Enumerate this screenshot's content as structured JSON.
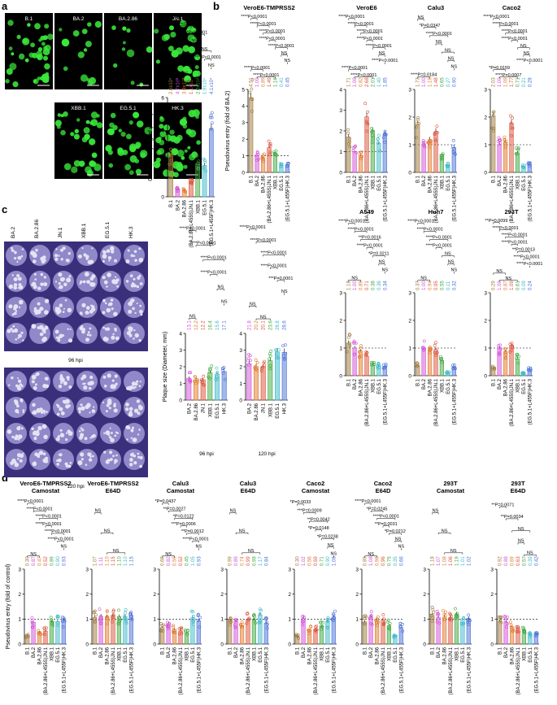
{
  "colors": [
    "#a07a3c",
    "#d14fd6",
    "#e07a2c",
    "#d95038",
    "#3fa83f",
    "#3cb8c9",
    "#4a70d6"
  ],
  "panel_a": {
    "letter": "a",
    "micrographs": [
      "B.1",
      "BA.2",
      "BA.2.86",
      "JN.1",
      "XBB.1",
      "EG.5.1",
      "HK.3"
    ],
    "chart_data": {
      "type": "bar",
      "ylabel": "GFP Intensity signal (x10⁴)",
      "ylim": [
        0,
        6
      ],
      "yticks": [
        0,
        2,
        4,
        6
      ],
      "categories": [
        "B.1",
        "BA.2",
        "BA.2.86",
        "(BA.2.86+L455S)JN.1",
        "XBB.1",
        "EG.5.1",
        "(EG.5.1+L455F)HK.3"
      ],
      "values": [
        2.6,
        0.47,
        0.38,
        1.1,
        2.0,
        1.9,
        4.1
      ],
      "value_labels": [
        "2.6x10⁴",
        "4.7x10³",
        "3.8x10³",
        "1.1x10⁴",
        "2.0x10⁴",
        "1.9x10⁴",
        "4.1x10⁴"
      ],
      "significance": [
        "****P<0.0001",
        "****P<0.0001",
        "****P<0.0001",
        "NS",
        "NS",
        "****P<0.0001",
        "NS",
        "*P=0.0325",
        "****P<0.0001"
      ]
    }
  },
  "panel_b": {
    "letter": "b",
    "ylabel": "Pseudovirus entry (fold of BA.2)",
    "categories": [
      "B.1",
      "BA.2",
      "BA.2.86",
      "(BA.2.86+L455S)JN.1",
      "XBB.1",
      "EG.5.1",
      "(EG.5.1+L455F)HK.3"
    ],
    "charts": [
      {
        "title": "VeroE6-TMPRSS2",
        "ylim": [
          0,
          5
        ],
        "yticks": [
          0,
          1,
          2,
          3,
          4,
          5
        ],
        "values": [
          4.51,
          1.0,
          0.89,
          1.49,
          1.16,
          0.41,
          0.45
        ],
        "value_labels": [
          "4.51",
          "1.00",
          "0.89",
          "1.49",
          "1.16",
          "0.41",
          "0.45"
        ],
        "significance": [
          "****P<0.0001",
          "****P<0.0001",
          "****P<0.0001",
          "****P<0.0001",
          "****P<0.0001",
          "NS",
          "NS",
          "****P<0.0001",
          "****P<0.0001"
        ]
      },
      {
        "title": "VeroE6",
        "ylim": [
          0,
          4
        ],
        "yticks": [
          0,
          1,
          2,
          3,
          4
        ],
        "values": [
          1.71,
          1.0,
          0.82,
          2.68,
          2.01,
          1.4,
          1.85
        ],
        "value_labels": [
          "1.71",
          "1.00",
          "0.82",
          "2.68",
          "2.01",
          "1.40",
          "1.85"
        ],
        "significance": [
          "****P<0.0001",
          "****P<0.0001",
          "****P<0.0001",
          "****P<0.0001",
          "****P<0.0001",
          "NS",
          "****P<0.0001",
          "****P<0.0001",
          "****P<0.0001"
        ]
      },
      {
        "title": "Calu3",
        "ylim": [
          0,
          3
        ],
        "yticks": [
          0,
          1,
          2,
          3
        ],
        "values": [
          1.73,
          1.0,
          1.19,
          1.48,
          0.65,
          0.27,
          0.9
        ],
        "value_labels": [
          "1.73",
          "1.00",
          "1.19",
          "1.48",
          "0.65",
          "0.27",
          "0.90"
        ],
        "significance": [
          "NS",
          "*P=0.0347",
          "****P<0.0001",
          "NS",
          "NS",
          "NS",
          "NS",
          "****P=0.0184"
        ]
      },
      {
        "title": "Caco2",
        "ylim": [
          0,
          3
        ],
        "yticks": [
          0,
          1,
          2,
          3
        ],
        "values": [
          2.03,
          1.0,
          1.09,
          1.77,
          0.71,
          0.21,
          0.28
        ],
        "value_labels": [
          "2.03",
          "1.00",
          "1.09",
          "1.77",
          "0.71",
          "0.21",
          "0.28"
        ],
        "significance": [
          "****P<0.0001",
          "****P<0.0001",
          "****P<0.0001",
          "****P<0.0001",
          "NS",
          "NS",
          "****P<0.0001",
          "*P=0.0159",
          "****P=0.0007"
        ]
      },
      {
        "title": "A549",
        "ylim": [
          0,
          3
        ],
        "yticks": [
          0,
          1,
          2,
          3
        ],
        "values": [
          1.18,
          1.0,
          0.89,
          0.71,
          0.38,
          0.36,
          0.34
        ],
        "value_labels": [
          "1.18",
          "1.00",
          "0.89",
          "0.71",
          "0.38",
          "0.36",
          "0.34"
        ],
        "significance": [
          "****P<0.0001",
          "****P<0.0001",
          "**P=0.0016",
          "****P<0.0001",
          "*P=0.0211",
          "NS",
          "NS",
          "NS"
        ]
      },
      {
        "title": "Huh7",
        "ylim": [
          0,
          3
        ],
        "yticks": [
          0,
          1,
          2,
          3
        ],
        "values": [
          0.37,
          1.0,
          0.94,
          0.95,
          0.55,
          0.11,
          0.32
        ],
        "value_labels": [
          "0.37",
          "1.00",
          "0.94",
          "0.95",
          "0.55",
          "0.11",
          "0.32"
        ],
        "significance": [
          "****P<0.0001",
          "****P<0.0001",
          "****P<0.0001",
          "****P<0.0001",
          "NS",
          "NS",
          "NS",
          "NS"
        ]
      },
      {
        "title": "293T",
        "ylim": [
          0,
          3
        ],
        "yticks": [
          0,
          1,
          2,
          3
        ],
        "values": [
          0.29,
          1.0,
          0.87,
          1.09,
          0.61,
          0.09,
          0.24
        ],
        "value_labels": [
          "0.29",
          "1.00",
          "0.87",
          "1.09",
          "0.61",
          "0.09",
          "0.24"
        ],
        "significance": [
          "**P=0.0099",
          "****P<0.0001",
          "****P<0.0001",
          "****P<0.0001",
          "**P=0.0013",
          "****P<0.0001",
          "****P<0.0001",
          "NS",
          "NS"
        ]
      }
    ]
  },
  "panel_c": {
    "letter": "c",
    "plate_labels": [
      "BA.2",
      "BA.2.86",
      "JN.1",
      "XBB.1",
      "EG.5.1",
      "HK.3"
    ],
    "time_labels": [
      "96 hpi",
      "120 hpi"
    ],
    "ylabel": "Plaque size (Diameter, mm)",
    "categories": [
      "BA.2",
      "BA.2.86",
      "JN.1",
      "XBB.1",
      "EG.5.1",
      "HK.3"
    ],
    "colors": [
      "#d14fd6",
      "#e07a2c",
      "#d95038",
      "#3fa83f",
      "#3cb8c9",
      "#4a70d6"
    ],
    "charts": [
      {
        "title": "96 hpi",
        "ylim": [
          0,
          4
        ],
        "yticks": [
          0,
          1,
          2,
          3,
          4
        ],
        "values": [
          1.31,
          1.22,
          1.22,
          1.64,
          1.56,
          1.71
        ],
        "value_labels": [
          "13.1",
          "12.2",
          "12.2",
          "16.4",
          "15.6",
          "17.1"
        ],
        "significance": [
          "****P<0.0001",
          "****P<0.0001",
          "****P<0.0001",
          "****P<0.0001",
          "NS",
          "NS",
          "NS"
        ]
      },
      {
        "title": "120 hpi",
        "ylim": [
          0,
          4
        ],
        "yticks": [
          0,
          1,
          2,
          3,
          4
        ],
        "values": [
          2.18,
          2.02,
          2.01,
          2.36,
          2.88,
          2.86
        ],
        "value_labels": [
          "21.8",
          "20.2",
          "20.1",
          "23.6",
          "28.8",
          "28.6"
        ],
        "significance": [
          "****P<0.0001",
          "****P<0.0001",
          "****P<0.0001",
          "****P<0.0001",
          "***P=0.0001",
          "NS",
          "NS",
          "NS"
        ]
      }
    ]
  },
  "panel_d": {
    "letter": "d",
    "ylabel": "Pseudovirus entry (fold of control)",
    "categories": [
      "B.1",
      "BA.2",
      "BA.2.86",
      "(BA.2.86+L455S)JN.1",
      "XBB.1",
      "EG.5.1",
      "(EG.5.1+L455F)HK.3"
    ],
    "ylim": [
      0,
      3
    ],
    "yticks": [
      0,
      1,
      2,
      3
    ],
    "charts": [
      {
        "title": "VeroE6-TMPRSS2",
        "subtitle": "Camostat",
        "values": [
          0.3,
          0.87,
          0.47,
          0.52,
          0.89,
          0.9,
          0.93
        ],
        "value_labels": [
          "0.30",
          "0.87",
          "0.47",
          "0.52",
          "0.89",
          "0.90",
          "0.93"
        ],
        "significance": [
          "****P<0.0001",
          "****P<0.0001",
          "****P<0.0001",
          "****P<0.0001",
          "****P<0.0001",
          "****P<0.0001",
          "NS",
          "NS"
        ]
      },
      {
        "title": "VeroE6-TMPRSS2",
        "subtitle": "E64D",
        "values": [
          1.07,
          1.11,
          1.1,
          1.15,
          1.1,
          1.1,
          1.15
        ],
        "value_labels": [
          "1.07",
          "1.11",
          "1.10",
          "1.15",
          "1.10",
          "1.10",
          "1.15"
        ],
        "significance": [
          "NS",
          "NS",
          "NS"
        ]
      },
      {
        "title": "Calu3",
        "subtitle": "Camostat",
        "values": [
          0.66,
          0.82,
          0.59,
          0.52,
          0.45,
          1.05,
          0.93
        ],
        "value_labels": [
          "0.66",
          "0.82",
          "0.59",
          "0.52",
          "0.45",
          "1.05",
          "0.93"
        ],
        "significance": [
          "*P=0.0437",
          "**P=0.0027",
          "*P=0.0122",
          "***P=0.0006",
          "**P=0.0012",
          "****P<0.0001",
          "NS",
          "NS"
        ]
      },
      {
        "title": "Calu3",
        "subtitle": "E64D",
        "values": [
          0.99,
          0.89,
          0.74,
          0.99,
          0.98,
          1.17,
          0.84
        ],
        "value_labels": [
          "0.99",
          "0.89",
          "0.74",
          "0.99",
          "0.98",
          "1.17",
          "0.84"
        ],
        "significance": [
          "NS",
          "NS",
          "NS"
        ]
      },
      {
        "title": "Caco2",
        "subtitle": "Camostat",
        "values": [
          0.3,
          1.02,
          0.56,
          0.59,
          0.71,
          0.9,
          1.08
        ],
        "value_labels": [
          "0.30",
          "1.02",
          "0.56",
          "0.59",
          "0.71",
          "0.90",
          "1.08"
        ],
        "significance": [
          "*P=0.0033",
          "***P=0.0009",
          "**P=0.0042",
          "*P=0.0148",
          "*P=0.0238",
          "NS",
          "NS"
        ]
      },
      {
        "title": "Caco2",
        "subtitle": "E64D",
        "values": [
          0.89,
          1.08,
          0.96,
          0.96,
          0.75,
          0.35,
          0.66
        ],
        "value_labels": [
          "0.89",
          "1.08",
          "0.96",
          "0.96",
          "0.75",
          "0.35",
          "0.66"
        ],
        "significance": [
          "****P<0.0001",
          "*P=0.0245",
          "****P<0.0001",
          "**P=0.0031",
          "*P=0.0212",
          "NS",
          "NS",
          "NS"
        ]
      },
      {
        "title": "293T",
        "subtitle": "Camostat",
        "values": [
          1.18,
          1.07,
          1.08,
          1.06,
          1.19,
          1.01,
          1.02
        ],
        "value_labels": [
          "1.18",
          "1.07",
          "1.08",
          "1.06",
          "1.19",
          "1.01",
          "1.02"
        ],
        "significance": [
          "NS",
          "NS",
          "NS"
        ]
      },
      {
        "title": "293T",
        "subtitle": "E64D",
        "values": [
          0.92,
          0.88,
          0.69,
          0.63,
          0.57,
          0.39,
          0.42
        ],
        "value_labels": [
          "0.92",
          "0.88",
          "0.69",
          "0.63",
          "0.57",
          "0.39",
          "0.42"
        ],
        "significance": [
          "**P=0.0071",
          "**P=0.0034",
          "NS",
          "NS",
          "NS"
        ]
      }
    ]
  }
}
